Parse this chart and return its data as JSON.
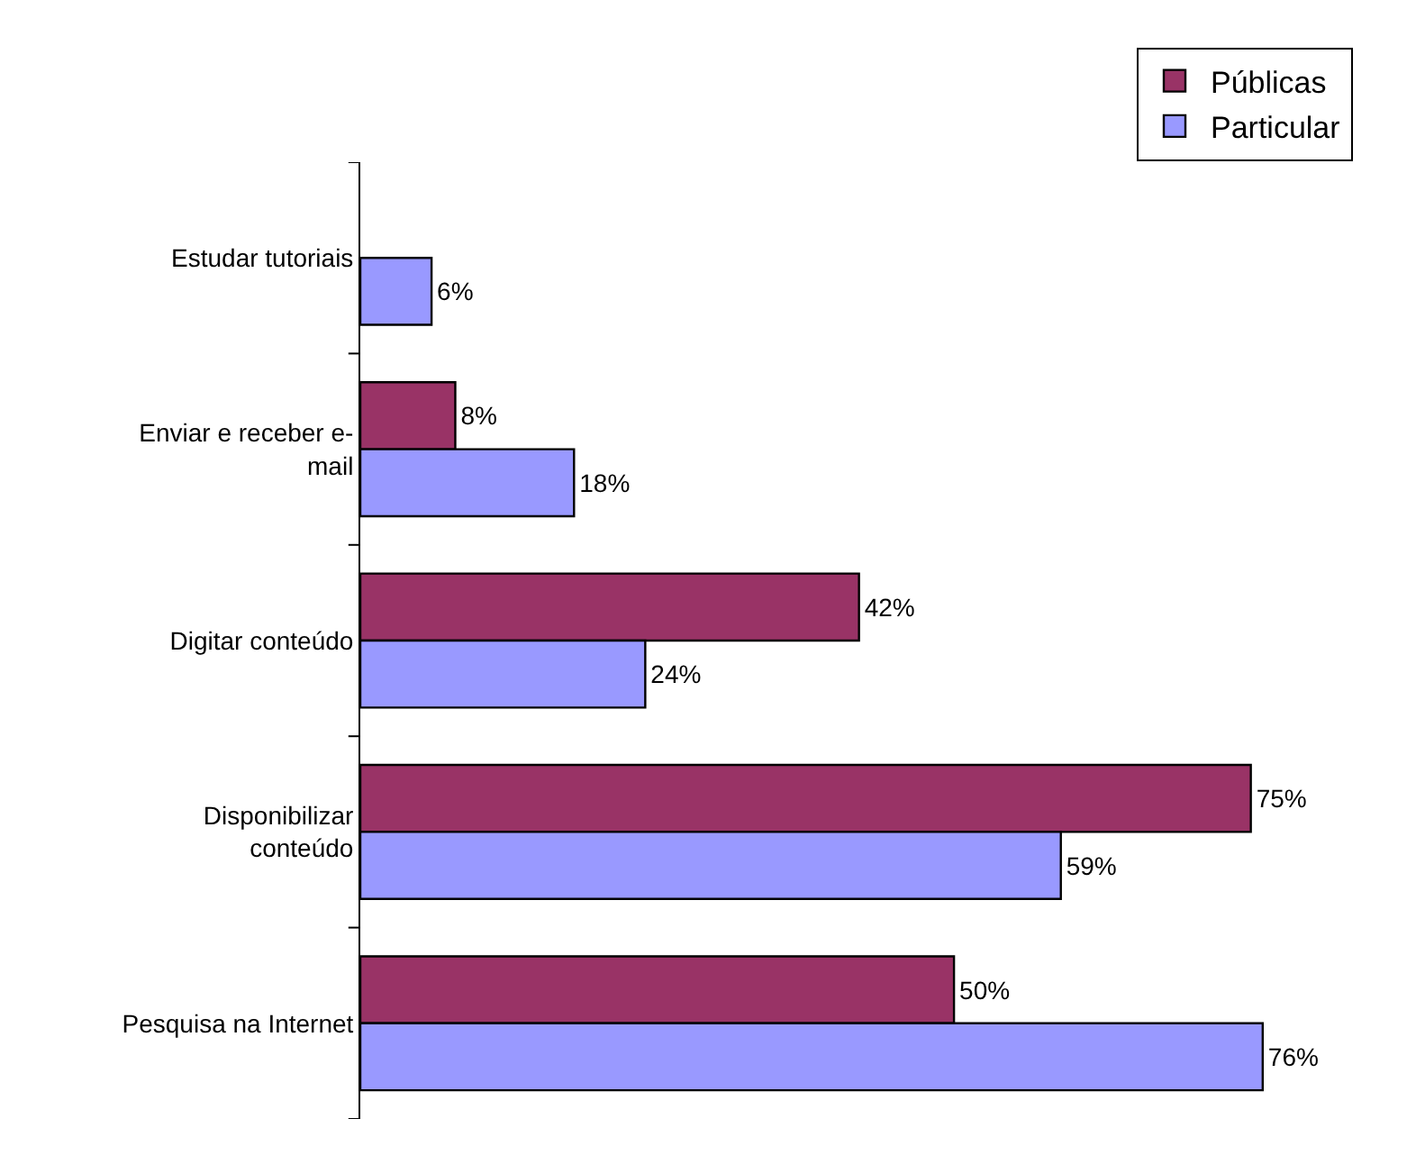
{
  "chart_data": {
    "type": "bar",
    "orientation": "horizontal",
    "categories": [
      "Estudar tutoriais",
      "Enviar e receber e-mail",
      "Digitar conteúdo",
      "Disponibilizar conteúdo",
      "Pesquisa na Internet"
    ],
    "series": [
      {
        "name": "Públicas",
        "color": "#993366",
        "values": [
          null,
          8,
          42,
          75,
          50
        ],
        "value_labels": [
          null,
          "8%",
          "42%",
          "75%",
          "50%"
        ]
      },
      {
        "name": "Particular",
        "color": "#9999ff",
        "values": [
          6,
          18,
          24,
          59,
          76
        ],
        "value_labels": [
          "6%",
          "18%",
          "24%",
          "59%",
          "76%"
        ]
      }
    ],
    "legend": "top right"
  }
}
